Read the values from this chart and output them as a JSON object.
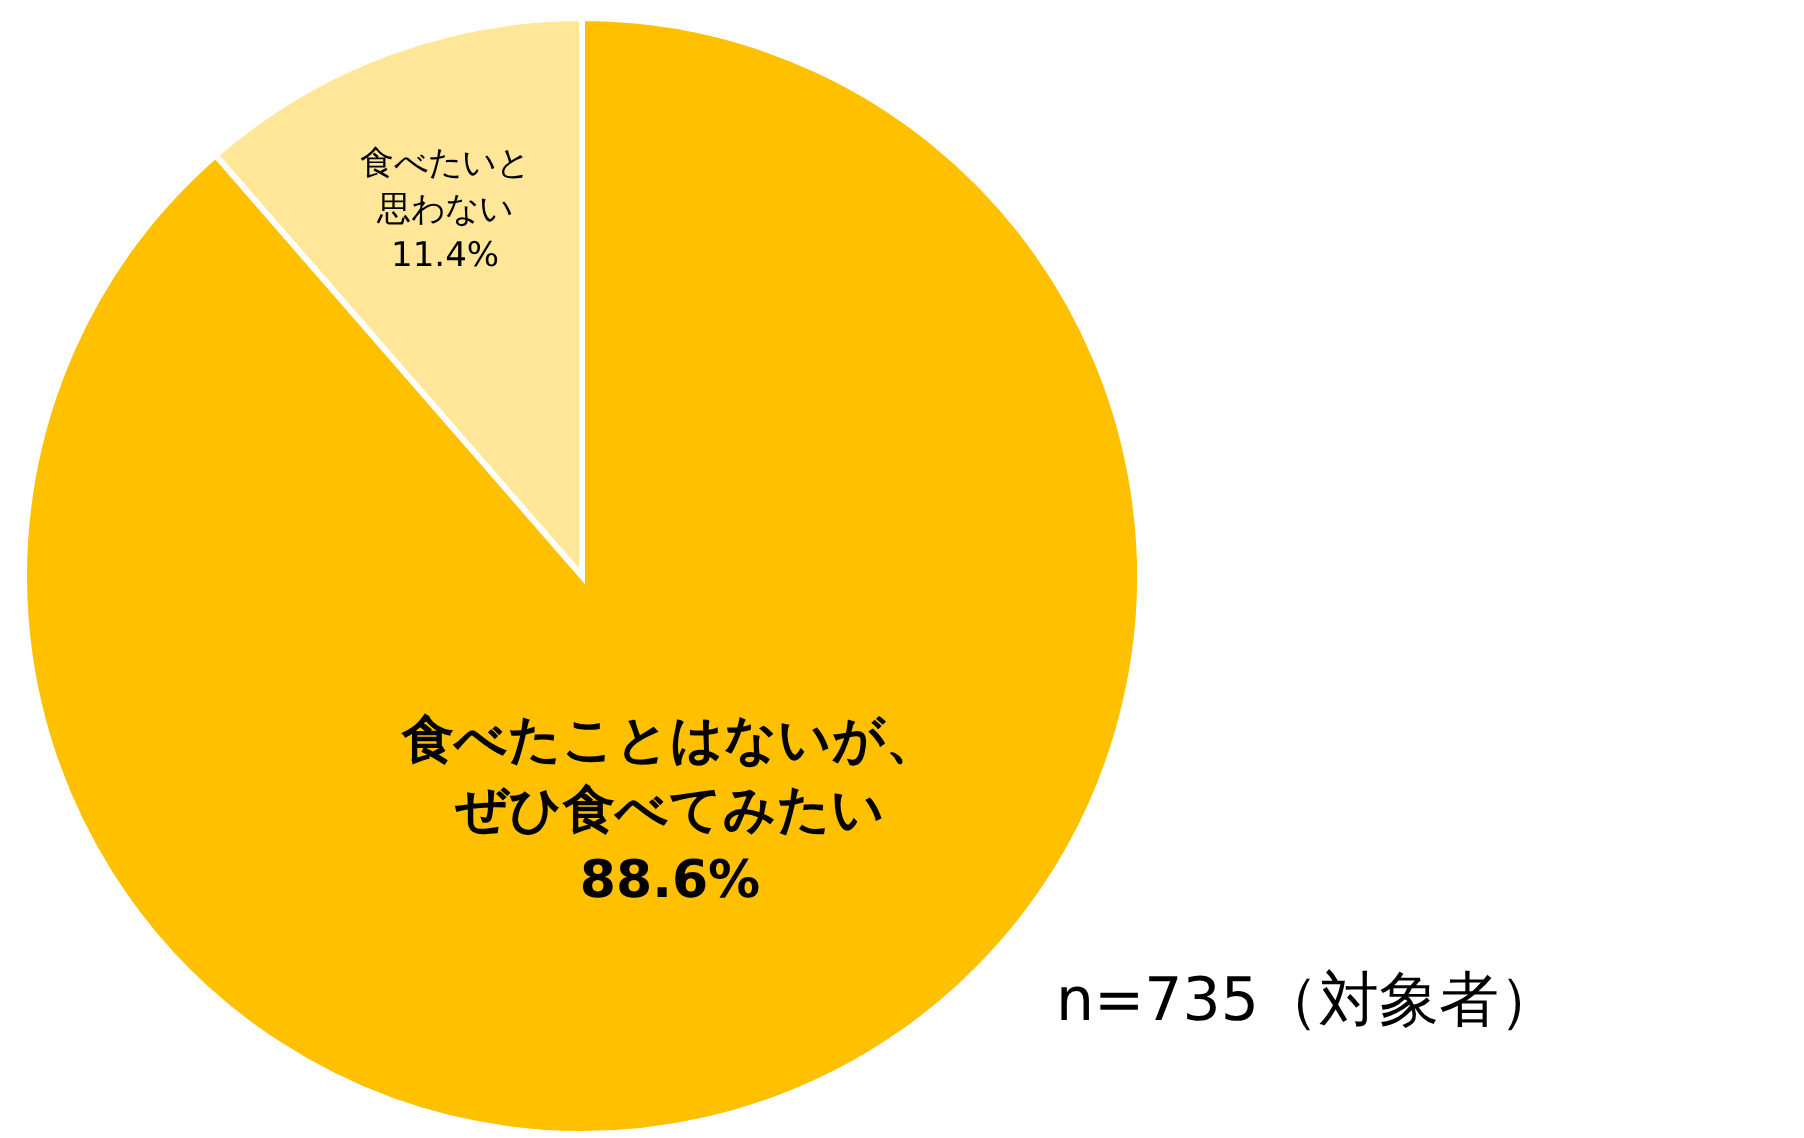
{
  "chart_data": {
    "type": "pie",
    "categories": [
      "食べたことはないが、ぜひ食べてみたい",
      "食べたいと思わない"
    ],
    "values": [
      88.6,
      11.4
    ],
    "value_labels": [
      "88.6%",
      "11.4%"
    ],
    "colors": [
      "#ffc000",
      "#ffe699"
    ],
    "legend": false,
    "annotations": [
      "n=735（対象者）"
    ]
  }
}
